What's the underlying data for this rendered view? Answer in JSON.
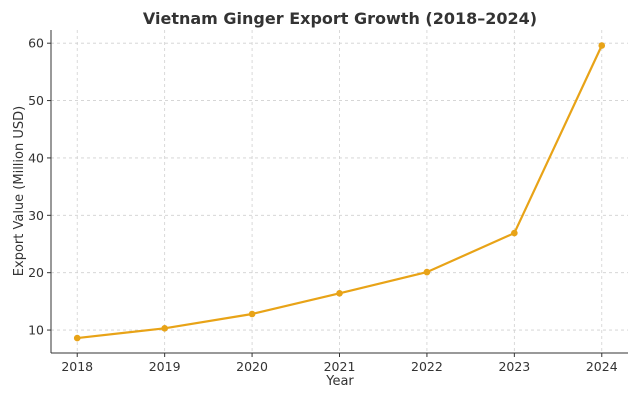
{
  "chart_data": {
    "type": "line",
    "title": "Vietnam Ginger Export Growth (2018–2024)",
    "xlabel": "Year",
    "ylabel": "Export Value (Million USD)",
    "x": [
      2018,
      2019,
      2020,
      2021,
      2022,
      2023,
      2024
    ],
    "x_tick_labels": [
      "2018",
      "2019",
      "2020",
      "2021",
      "2022",
      "2023",
      "2024"
    ],
    "y_ticks": [
      10,
      20,
      30,
      40,
      50,
      60
    ],
    "y_tick_labels": [
      "10",
      "20",
      "30",
      "40",
      "50",
      "60"
    ],
    "series": [
      {
        "values": [
          8.6,
          10.3,
          12.8,
          16.4,
          20.1,
          26.9,
          59.6
        ],
        "color": "#E8A317",
        "marker": "circle"
      }
    ],
    "xlim": [
      2017.7,
      2024.3
    ],
    "ylim": [
      6.0,
      62.3
    ],
    "grid": true
  }
}
